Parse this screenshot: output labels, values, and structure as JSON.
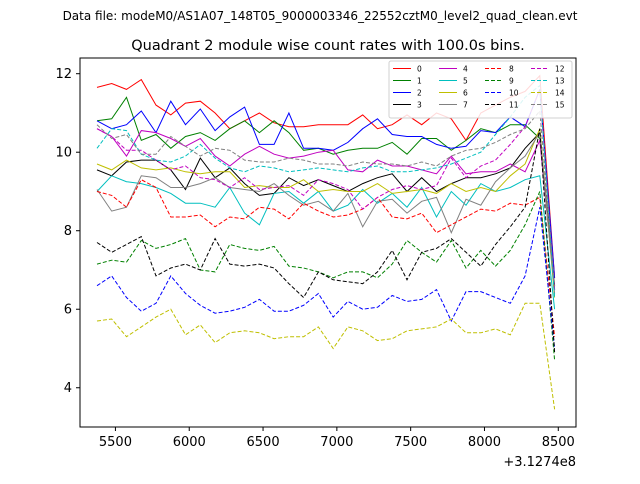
{
  "figure": {
    "suptitle": "Data file: modeM0/AS1A07_148T05_9000003346_22552cztM0_level2_quad_clean.evt",
    "title": "Quadrant 2 module wise count rates with 100.0s bins.",
    "x_offset_label": "+3.1274e8"
  },
  "chart_data": {
    "type": "line",
    "title": "Quadrant 2 module wise count rates with 100.0s bins.",
    "xlabel": "",
    "ylabel": "",
    "xlim": [
      5260,
      8620
    ],
    "ylim": [
      3.0,
      12.4
    ],
    "x_ticks": [
      5500,
      6000,
      6500,
      7000,
      7500,
      8000,
      8500
    ],
    "x_tick_labels": [
      "5500",
      "6000",
      "6500",
      "7000",
      "7500",
      "8000",
      "8500"
    ],
    "y_ticks": [
      4,
      6,
      8,
      10,
      12
    ],
    "y_tick_labels": [
      "4",
      "6",
      "8",
      "10",
      "12"
    ],
    "x_offset": "+3.1274e8",
    "grid": false,
    "legend": {
      "position": "top-right",
      "columns": 4
    },
    "x": [
      5375,
      5475,
      5575,
      5675,
      5775,
      5875,
      5975,
      6075,
      6175,
      6275,
      6375,
      6475,
      6575,
      6675,
      6775,
      6875,
      6975,
      7075,
      7175,
      7275,
      7375,
      7475,
      7575,
      7675,
      7775,
      7875,
      7975,
      8075,
      8175,
      8275,
      8375,
      8475
    ],
    "series": [
      {
        "name": "0",
        "color": "#ff0000",
        "dash": "solid",
        "values": [
          11.65,
          11.75,
          11.6,
          11.85,
          11.2,
          10.95,
          11.25,
          11.3,
          11.0,
          10.6,
          10.8,
          11.0,
          10.75,
          10.65,
          10.65,
          10.7,
          10.7,
          10.7,
          10.95,
          10.6,
          10.7,
          10.95,
          10.7,
          11.0,
          10.85,
          10.3,
          11.0,
          11.2,
          11.4,
          11.55,
          11.95,
          6.8
        ]
      },
      {
        "name": "1",
        "color": "#008000",
        "dash": "solid",
        "values": [
          10.8,
          10.85,
          11.4,
          10.3,
          10.45,
          10.1,
          10.4,
          10.5,
          10.3,
          10.6,
          10.8,
          10.5,
          10.8,
          10.5,
          10.05,
          10.1,
          9.95,
          10.05,
          10.1,
          10.1,
          10.25,
          9.95,
          10.35,
          10.35,
          10.05,
          10.3,
          10.6,
          10.5,
          10.7,
          10.7,
          10.35,
          6.5
        ]
      },
      {
        "name": "2",
        "color": "#0000ff",
        "dash": "solid",
        "values": [
          10.8,
          10.6,
          10.7,
          11.05,
          10.5,
          11.3,
          10.7,
          11.1,
          10.55,
          10.9,
          11.15,
          10.2,
          10.2,
          11.0,
          10.1,
          10.1,
          10.05,
          10.25,
          10.6,
          10.85,
          10.45,
          10.4,
          10.4,
          10.2,
          10.1,
          10.15,
          10.55,
          10.5,
          10.9,
          10.65,
          11.6,
          6.8
        ]
      },
      {
        "name": "3",
        "color": "#000000",
        "dash": "solid",
        "values": [
          9.55,
          9.4,
          9.75,
          9.8,
          9.8,
          9.55,
          9.05,
          9.85,
          9.35,
          9.6,
          9.2,
          8.9,
          8.95,
          9.35,
          9.15,
          9.3,
          9.15,
          9.0,
          9.2,
          9.35,
          9.45,
          9.0,
          9.35,
          9.0,
          9.2,
          9.35,
          9.35,
          9.45,
          9.6,
          10.1,
          10.5,
          6.6
        ]
      },
      {
        "name": "4",
        "color": "#c000c0",
        "dash": "solid",
        "values": [
          10.6,
          10.4,
          9.9,
          10.55,
          10.5,
          10.35,
          10.15,
          10.35,
          9.9,
          9.65,
          9.95,
          10.15,
          9.95,
          9.85,
          9.9,
          10.0,
          10.05,
          9.55,
          9.5,
          9.8,
          9.65,
          9.65,
          9.55,
          9.45,
          9.9,
          9.45,
          9.5,
          9.5,
          9.7,
          9.5,
          10.3,
          6.5
        ]
      },
      {
        "name": "5",
        "color": "#00bfbf",
        "dash": "solid",
        "values": [
          9.0,
          9.4,
          9.25,
          9.2,
          9.1,
          8.95,
          8.7,
          8.7,
          8.6,
          9.1,
          8.45,
          8.15,
          8.95,
          9.0,
          8.7,
          9.0,
          8.5,
          8.65,
          9.05,
          8.7,
          8.95,
          8.6,
          9.1,
          8.35,
          9.0,
          8.65,
          9.2,
          9.0,
          9.1,
          9.3,
          9.4,
          6.0
        ]
      },
      {
        "name": "6",
        "color": "#bfbf00",
        "dash": "solid",
        "values": [
          9.7,
          9.55,
          9.8,
          9.6,
          9.55,
          9.6,
          9.5,
          9.45,
          9.5,
          9.5,
          9.1,
          9.15,
          9.1,
          9.1,
          9.3,
          9.0,
          9.05,
          9.0,
          9.0,
          9.2,
          8.95,
          9.0,
          9.05,
          8.95,
          9.2,
          9.0,
          9.1,
          9.0,
          9.4,
          9.7,
          10.6,
          6.3
        ]
      },
      {
        "name": "7",
        "color": "#808080",
        "dash": "solid",
        "values": [
          9.05,
          8.5,
          8.6,
          9.4,
          9.35,
          9.1,
          9.1,
          9.2,
          9.35,
          9.1,
          9.05,
          9.0,
          9.2,
          8.9,
          8.65,
          8.75,
          8.5,
          8.95,
          8.1,
          8.75,
          8.8,
          8.45,
          8.75,
          8.85,
          7.95,
          8.8,
          8.65,
          9.25,
          9.6,
          9.9,
          10.5,
          6.4
        ]
      },
      {
        "name": "8",
        "color": "#ff0000",
        "dash": "dashed",
        "values": [
          9.0,
          8.9,
          8.6,
          9.3,
          9.1,
          8.35,
          8.35,
          8.4,
          8.1,
          8.35,
          8.3,
          8.6,
          8.55,
          8.3,
          8.7,
          8.5,
          8.35,
          8.4,
          8.55,
          8.85,
          8.35,
          8.3,
          8.45,
          7.95,
          8.15,
          8.35,
          8.55,
          8.5,
          8.7,
          8.65,
          8.85,
          5.3
        ]
      },
      {
        "name": "9",
        "color": "#008000",
        "dash": "dashed",
        "values": [
          7.15,
          7.25,
          7.2,
          7.75,
          7.55,
          7.65,
          7.8,
          7.0,
          6.95,
          7.65,
          7.55,
          7.5,
          7.6,
          7.1,
          7.05,
          6.95,
          6.8,
          6.95,
          6.95,
          6.8,
          7.15,
          7.75,
          7.45,
          7.2,
          7.75,
          7.05,
          7.5,
          7.1,
          7.5,
          8.15,
          9.0,
          4.7
        ]
      },
      {
        "name": "10",
        "color": "#0000ff",
        "dash": "dashed",
        "values": [
          6.6,
          6.85,
          6.3,
          5.95,
          6.15,
          6.85,
          6.4,
          6.1,
          5.9,
          5.95,
          6.05,
          6.25,
          5.95,
          5.95,
          6.1,
          6.4,
          5.8,
          6.2,
          6.0,
          6.05,
          6.35,
          6.2,
          6.25,
          6.5,
          5.7,
          6.45,
          6.45,
          6.3,
          6.15,
          6.85,
          8.6,
          5.0
        ]
      },
      {
        "name": "11",
        "color": "#000000",
        "dash": "dashed",
        "values": [
          7.7,
          7.45,
          7.65,
          7.85,
          6.85,
          7.05,
          7.15,
          7.0,
          7.8,
          7.15,
          7.1,
          7.15,
          7.05,
          6.65,
          6.3,
          6.95,
          6.75,
          6.7,
          6.65,
          6.95,
          7.5,
          6.75,
          7.45,
          7.55,
          7.8,
          7.45,
          7.1,
          7.65,
          8.1,
          8.6,
          10.6,
          4.9
        ]
      },
      {
        "name": "12",
        "color": "#c000c0",
        "dash": "dashed",
        "values": [
          10.6,
          10.4,
          10.05,
          10.05,
          9.8,
          9.55,
          9.65,
          9.35,
          9.3,
          9.1,
          9.35,
          9.05,
          9.1,
          9.15,
          8.9,
          9.3,
          9.2,
          9.05,
          8.55,
          8.85,
          9.05,
          9.15,
          9.05,
          9.15,
          9.85,
          9.35,
          9.65,
          9.8,
          10.2,
          10.65,
          11.6,
          6.5
        ]
      },
      {
        "name": "13",
        "color": "#00bfbf",
        "dash": "dashed",
        "values": [
          10.1,
          10.6,
          10.55,
          9.95,
          9.8,
          9.75,
          9.9,
          10.2,
          9.85,
          9.6,
          9.5,
          9.65,
          9.6,
          9.5,
          9.55,
          9.6,
          9.55,
          9.5,
          9.6,
          9.65,
          9.5,
          9.5,
          9.55,
          9.6,
          9.7,
          9.85,
          10.0,
          10.45,
          10.9,
          11.4,
          11.7,
          6.3
        ]
      },
      {
        "name": "14",
        "color": "#bfbf00",
        "dash": "dashed",
        "values": [
          5.7,
          5.75,
          5.3,
          5.55,
          5.8,
          6.0,
          5.35,
          5.6,
          5.15,
          5.4,
          5.45,
          5.4,
          5.25,
          5.3,
          5.3,
          5.55,
          5.0,
          5.55,
          5.45,
          5.2,
          5.25,
          5.45,
          5.5,
          5.55,
          5.75,
          5.4,
          5.4,
          5.5,
          5.35,
          6.15,
          6.15,
          3.45
        ]
      },
      {
        "name": "15",
        "color": "#808080",
        "dash": "dashed",
        "values": [
          10.7,
          10.35,
          10.45,
          9.95,
          9.95,
          10.4,
          10.15,
          9.9,
          10.1,
          10.05,
          9.8,
          9.75,
          9.75,
          9.85,
          9.8,
          9.7,
          9.7,
          9.65,
          9.75,
          9.7,
          9.7,
          9.65,
          9.75,
          9.65,
          9.9,
          10.05,
          10.1,
          10.25,
          10.45,
          10.6,
          11.05,
          6.6
        ]
      }
    ]
  }
}
